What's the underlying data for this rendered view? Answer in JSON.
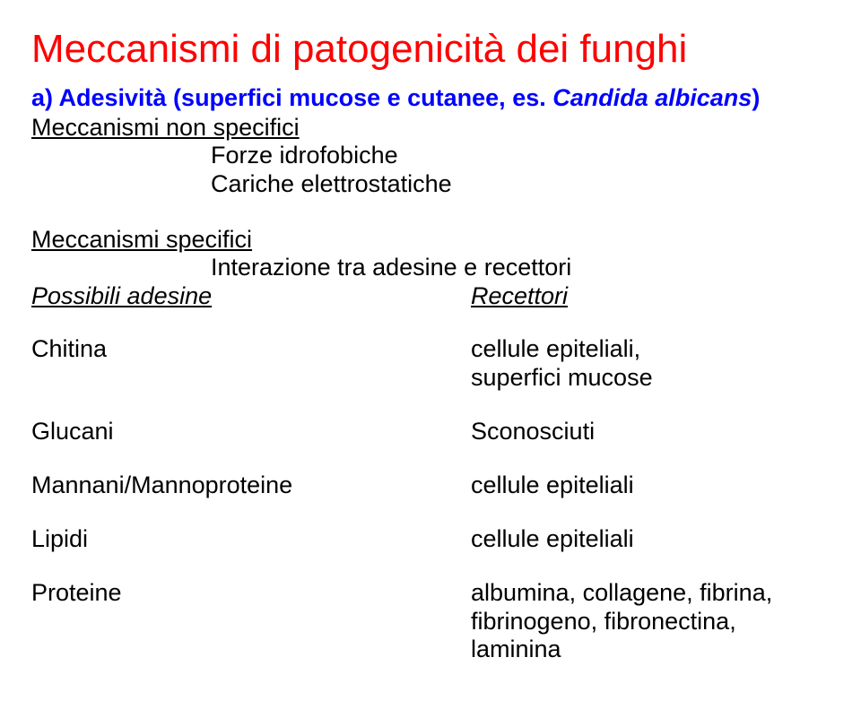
{
  "colors": {
    "title": "#ff0000",
    "subtitle": "#0000ff",
    "body": "#000000",
    "background": "#ffffff"
  },
  "title": "Meccanismi di patogenicità dei funghi",
  "subtitle": {
    "part_a_bold": "a) Adesività (superfici mucose e cutanee, es. ",
    "part_b_italic": "Candida albicans",
    "part_c_bold": ")"
  },
  "nonspecific": {
    "heading": "Meccanismi non specifici",
    "lines": [
      "Forze idrofobiche",
      "Cariche elettrostatiche"
    ]
  },
  "specific": {
    "heading": "Meccanismi specifici",
    "sub": "Interazione tra adesine e recettori",
    "left_header": "Possibili adesine",
    "right_header": "Recettori"
  },
  "rows": [
    {
      "l": "Chitina",
      "r": "cellule epiteliali,\nsuperfici mucose"
    },
    {
      "l": "Glucani",
      "r": "Sconosciuti"
    },
    {
      "l": "Mannani/Mannoproteine",
      "r": "cellule epiteliali"
    },
    {
      "l": "Lipidi",
      "r": "cellule epiteliali"
    },
    {
      "l": "Proteine",
      "r": "albumina, collagene, fibrina,\nfibrinogeno, fibronectina,\nlaminina"
    }
  ]
}
